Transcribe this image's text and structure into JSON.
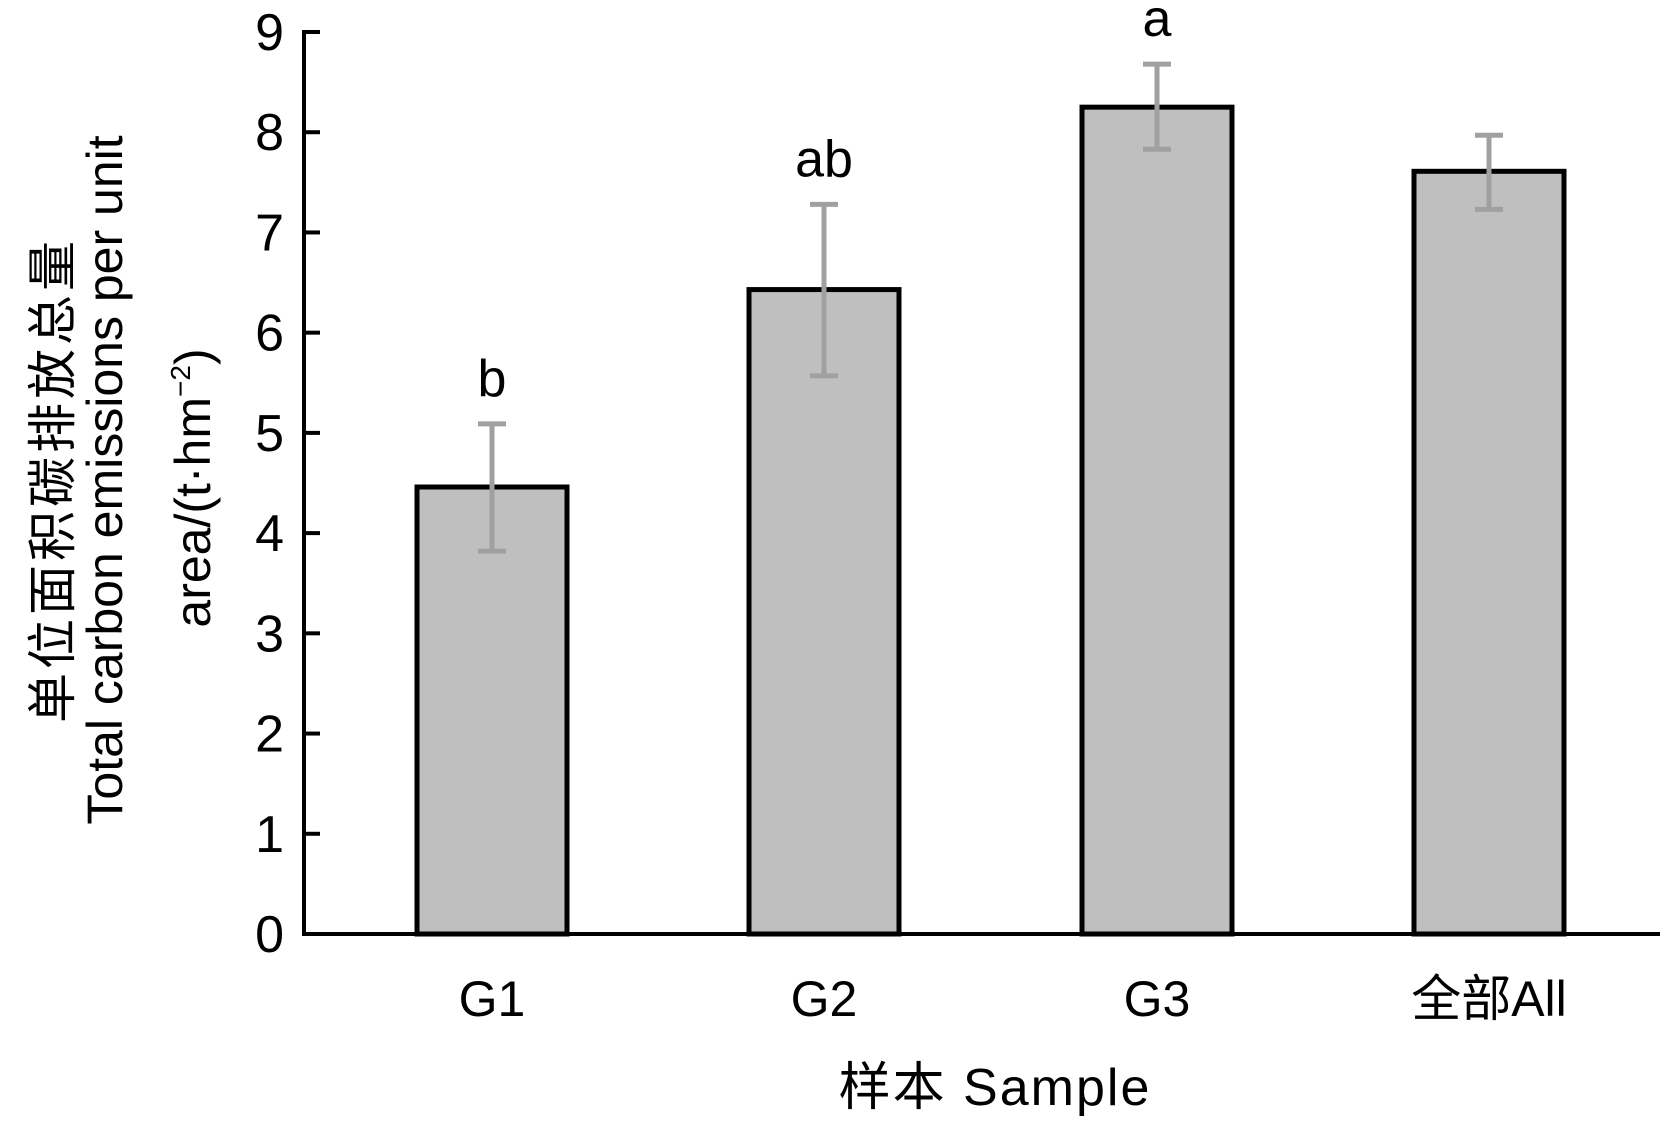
{
  "chart_data": {
    "type": "bar",
    "title": "",
    "categories": [
      "G1",
      "G2",
      "G3",
      "全部All"
    ],
    "values": [
      4.46,
      6.43,
      8.25,
      7.61
    ],
    "error_upper": [
      5.09,
      7.28,
      8.68,
      7.97
    ],
    "error_lower": [
      3.82,
      5.57,
      7.83,
      7.23
    ],
    "significance_labels": [
      "b",
      "ab",
      "a",
      ""
    ],
    "xlabel": "样本 Sample",
    "ylabel_line1": "单位面积碳排放总量",
    "ylabel_line2": "Total carbon emissions per unit",
    "ylabel_line3_prefix": "area/(t·hm",
    "ylabel_line3_sup": "−2",
    "ylabel_line3_suffix": ")",
    "ylim": [
      0,
      9
    ],
    "yticks": [
      "0",
      "1",
      "2",
      "3",
      "4",
      "5",
      "6",
      "7",
      "8",
      "9"
    ],
    "grid": false,
    "colors": {
      "bar_fill": "#bfbfbf",
      "bar_edge": "#000000",
      "error_bar": "#a0a0a0"
    }
  }
}
